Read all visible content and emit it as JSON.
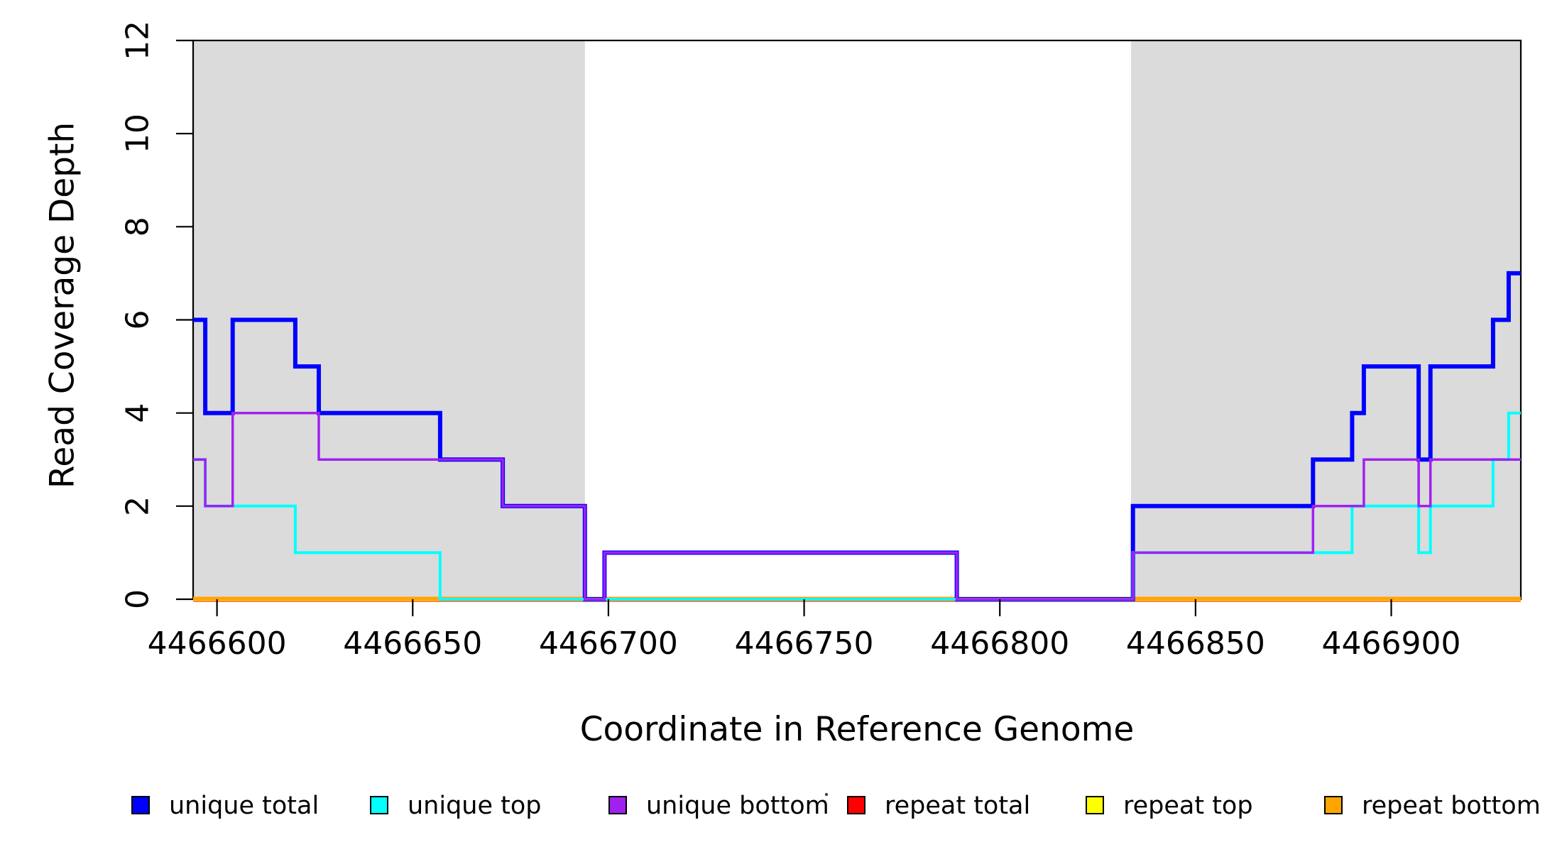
{
  "chart_data": {
    "type": "line",
    "subtype": "step",
    "xlabel": "Coordinate in Reference Genome",
    "ylabel": "Read Coverage Depth",
    "xlim": [
      4466593.9,
      4466933.1
    ],
    "ylim": [
      0,
      12
    ],
    "grid": false,
    "x_ticks": [
      4466600,
      4466650,
      4466700,
      4466750,
      4466800,
      4466850,
      4466900
    ],
    "x_tick_labels": [
      "4466600",
      "4466650",
      "4466700",
      "4466750",
      "4466800",
      "4466850",
      "4466900"
    ],
    "y_ticks": [
      0,
      2,
      4,
      6,
      8,
      10,
      12
    ],
    "y_tick_labels": [
      "0",
      "2",
      "4",
      "6",
      "8",
      "10",
      "12"
    ],
    "shaded_regions": [
      {
        "from": 4466593.9,
        "to": 4466694,
        "color": "#DBDBDB"
      },
      {
        "from": 4466833.5,
        "to": 4466933.1,
        "color": "#DBDBDB"
      }
    ],
    "series": [
      {
        "name": "unique total",
        "color": "#0000FF",
        "width": 6,
        "points": [
          [
            4466593.9,
            6
          ],
          [
            4466597,
            4
          ],
          [
            4466604,
            6
          ],
          [
            4466620,
            5
          ],
          [
            4466626,
            4
          ],
          [
            4466657,
            3
          ],
          [
            4466673,
            2
          ],
          [
            4466694,
            0
          ],
          [
            4466699,
            1
          ],
          [
            4466789,
            0
          ],
          [
            4466834,
            2
          ],
          [
            4466880,
            3
          ],
          [
            4466890,
            4
          ],
          [
            4466893,
            5
          ],
          [
            4466907,
            3
          ],
          [
            4466910,
            5
          ],
          [
            4466926,
            6
          ],
          [
            4466930,
            7
          ]
        ],
        "x_end": 4466933.1
      },
      {
        "name": "unique top",
        "color": "#00FFFF",
        "width": 4,
        "points": [
          [
            4466593.9,
            3
          ],
          [
            4466597,
            2
          ],
          [
            4466620,
            1
          ],
          [
            4466657,
            0
          ],
          [
            4466834,
            1
          ],
          [
            4466890,
            2
          ],
          [
            4466907,
            1
          ],
          [
            4466910,
            2
          ],
          [
            4466926,
            3
          ],
          [
            4466930,
            4
          ]
        ],
        "x_end": 4466933.1
      },
      {
        "name": "unique bottom",
        "color": "#A020F0",
        "width": 3.5,
        "points": [
          [
            4466593.9,
            3
          ],
          [
            4466597,
            2
          ],
          [
            4466604,
            4
          ],
          [
            4466626,
            3
          ],
          [
            4466673,
            2
          ],
          [
            4466694,
            0
          ],
          [
            4466699,
            1
          ],
          [
            4466789,
            0
          ],
          [
            4466834,
            1
          ],
          [
            4466880,
            2
          ],
          [
            4466893,
            3
          ],
          [
            4466907,
            2
          ],
          [
            4466910,
            3
          ]
        ],
        "x_end": 4466933.1
      },
      {
        "name": "repeat total",
        "color": "#FF0000",
        "width": 3,
        "points": [
          [
            4466593.9,
            0
          ]
        ],
        "x_end": 4466933.1
      },
      {
        "name": "repeat top",
        "color": "#FFFF00",
        "width": 3,
        "points": [
          [
            4466593.9,
            0
          ]
        ],
        "x_end": 4466933.1
      },
      {
        "name": "repeat bottom",
        "color": "#FFA500",
        "width": 5,
        "points": [
          [
            4466593.9,
            0
          ]
        ],
        "x_end": 4466933.1
      }
    ],
    "legend": {
      "position": "bottom",
      "items": [
        {
          "label": "unique total",
          "color": "#0000FF"
        },
        {
          "label": "unique top",
          "color": "#00FFFF"
        },
        {
          "label": "unique bottom",
          "color": "#A020F0"
        },
        {
          "label": "repeat total",
          "color": "#FF0000"
        },
        {
          "label": "repeat top",
          "color": "#FFFF00"
        },
        {
          "label": "repeat bottom",
          "color": "#FFA500"
        }
      ]
    },
    "artifact_dot": {
      "present": true,
      "color": "#444444"
    }
  }
}
